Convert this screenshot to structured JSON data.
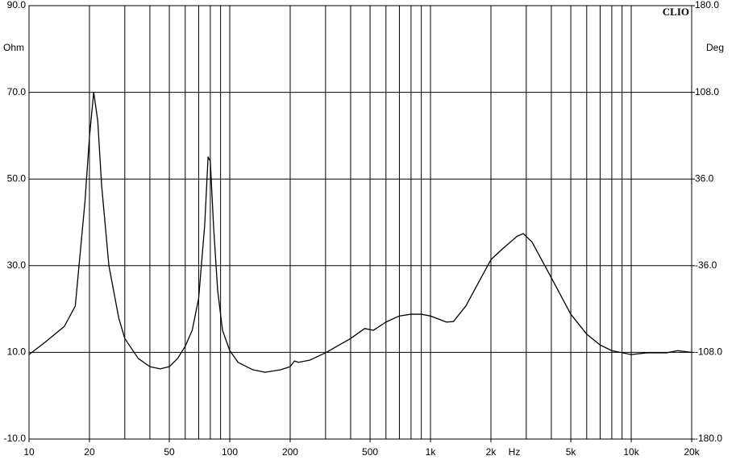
{
  "chart_data": {
    "type": "line",
    "brand": "CLIO",
    "ylabel": "Ohm",
    "y2label": "Deg",
    "xlabel": "Hz",
    "log_x": true,
    "grid": true,
    "color": "#000000",
    "xlim": [
      10,
      20000
    ],
    "xticks": [
      10,
      20,
      50,
      100,
      200,
      500,
      {
        "value": 1000,
        "label": "1k"
      },
      {
        "value": 2000,
        "label": "2k"
      },
      {
        "value": 5000,
        "label": "5k"
      },
      {
        "value": 10000,
        "label": "10k"
      },
      {
        "value": 20000,
        "label": "20k"
      }
    ],
    "xgrid": [
      10,
      20,
      30,
      40,
      50,
      60,
      70,
      80,
      90,
      100,
      200,
      300,
      400,
      500,
      600,
      700,
      800,
      900,
      1000,
      2000,
      3000,
      4000,
      5000,
      6000,
      7000,
      8000,
      9000,
      10000,
      20000
    ],
    "ylim": [
      -10,
      90
    ],
    "yticks": [
      {
        "value": -10,
        "label": "-10.0"
      },
      {
        "value": 10,
        "label": "10.0"
      },
      {
        "value": 30,
        "label": "30.0"
      },
      {
        "value": 50,
        "label": "50.0"
      },
      {
        "value": 70,
        "label": "70.0"
      },
      {
        "value": 90,
        "label": "90.0"
      }
    ],
    "y2lim": [
      -180,
      180
    ],
    "y2ticks": [
      {
        "value": -180,
        "label": "-180.0"
      },
      {
        "value": -108,
        "label": "-108.0"
      },
      {
        "value": -36,
        "label": "-36.0"
      },
      {
        "value": 36,
        "label": "36.0"
      },
      {
        "value": 108,
        "label": "108.0"
      },
      {
        "value": 180,
        "label": "180.0"
      }
    ],
    "x": [
      10,
      12,
      15,
      17,
      19,
      20,
      21,
      22,
      23,
      25,
      28,
      30,
      35,
      40,
      45,
      50,
      55,
      60,
      65,
      70,
      75,
      78,
      80,
      83,
      87,
      92,
      100,
      110,
      130,
      150,
      180,
      200,
      210,
      220,
      250,
      300,
      400,
      470,
      520,
      600,
      700,
      800,
      900,
      1000,
      1200,
      1300,
      1500,
      2000,
      2300,
      2700,
      2900,
      3200,
      4000,
      5000,
      6000,
      7000,
      8000,
      10000,
      12000,
      15000,
      17000,
      20000
    ],
    "values": [
      9.5,
      12.3,
      16,
      20.7,
      44.8,
      59.7,
      70,
      63.4,
      48.5,
      30,
      17.9,
      13.2,
      8.6,
      6.7,
      6.2,
      6.7,
      8.6,
      11.4,
      15.1,
      22.5,
      39.3,
      55.1,
      54.1,
      39.3,
      24.4,
      15.1,
      10.4,
      7.7,
      6,
      5.4,
      6,
      6.7,
      8,
      7.7,
      8.2,
      9.9,
      13.2,
      15.5,
      15.1,
      17,
      18.4,
      18.8,
      18.8,
      18.4,
      17,
      17.1,
      20.7,
      31.4,
      34,
      36.8,
      37.4,
      35.5,
      27.2,
      18.8,
      14.2,
      11.7,
      10.4,
      9.5,
      9.9,
      9.9,
      10.4,
      10
    ]
  }
}
